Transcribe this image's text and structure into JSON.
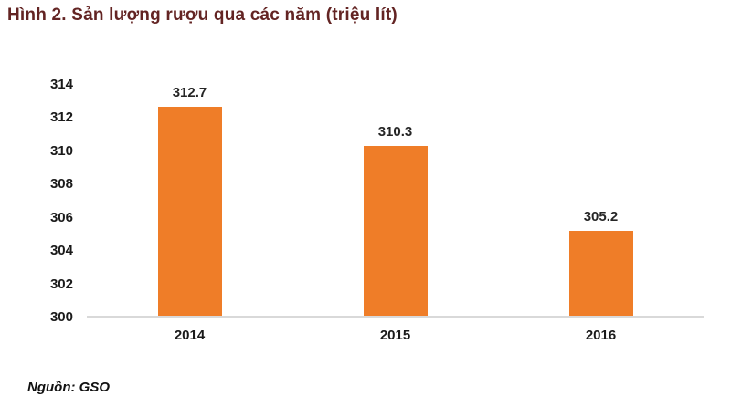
{
  "figure": {
    "title": "Hình 2. Sản lượng rượu qua các năm (triệu lít)",
    "source": "Nguồn: GSO"
  },
  "colors": {
    "bar": "#EF7D28",
    "title": "#632423",
    "axis_line": "#D9D9D9",
    "tick_text": "#1a1a1a"
  },
  "chart_data": {
    "type": "bar",
    "title": "Hình 2. Sản lượng rượu qua các năm (triệu lít)",
    "categories": [
      "2014",
      "2015",
      "2016"
    ],
    "values": [
      312.7,
      310.3,
      305.2
    ],
    "value_labels": [
      "312.7",
      "310.3",
      "305.2"
    ],
    "xlabel": "",
    "ylabel": "",
    "ylim": [
      300,
      314
    ],
    "yticks": [
      300,
      302,
      304,
      306,
      308,
      310,
      312,
      314
    ],
    "grid": false,
    "legend": false,
    "bar_color": "#EF7D28",
    "source": "Nguồn: GSO"
  }
}
